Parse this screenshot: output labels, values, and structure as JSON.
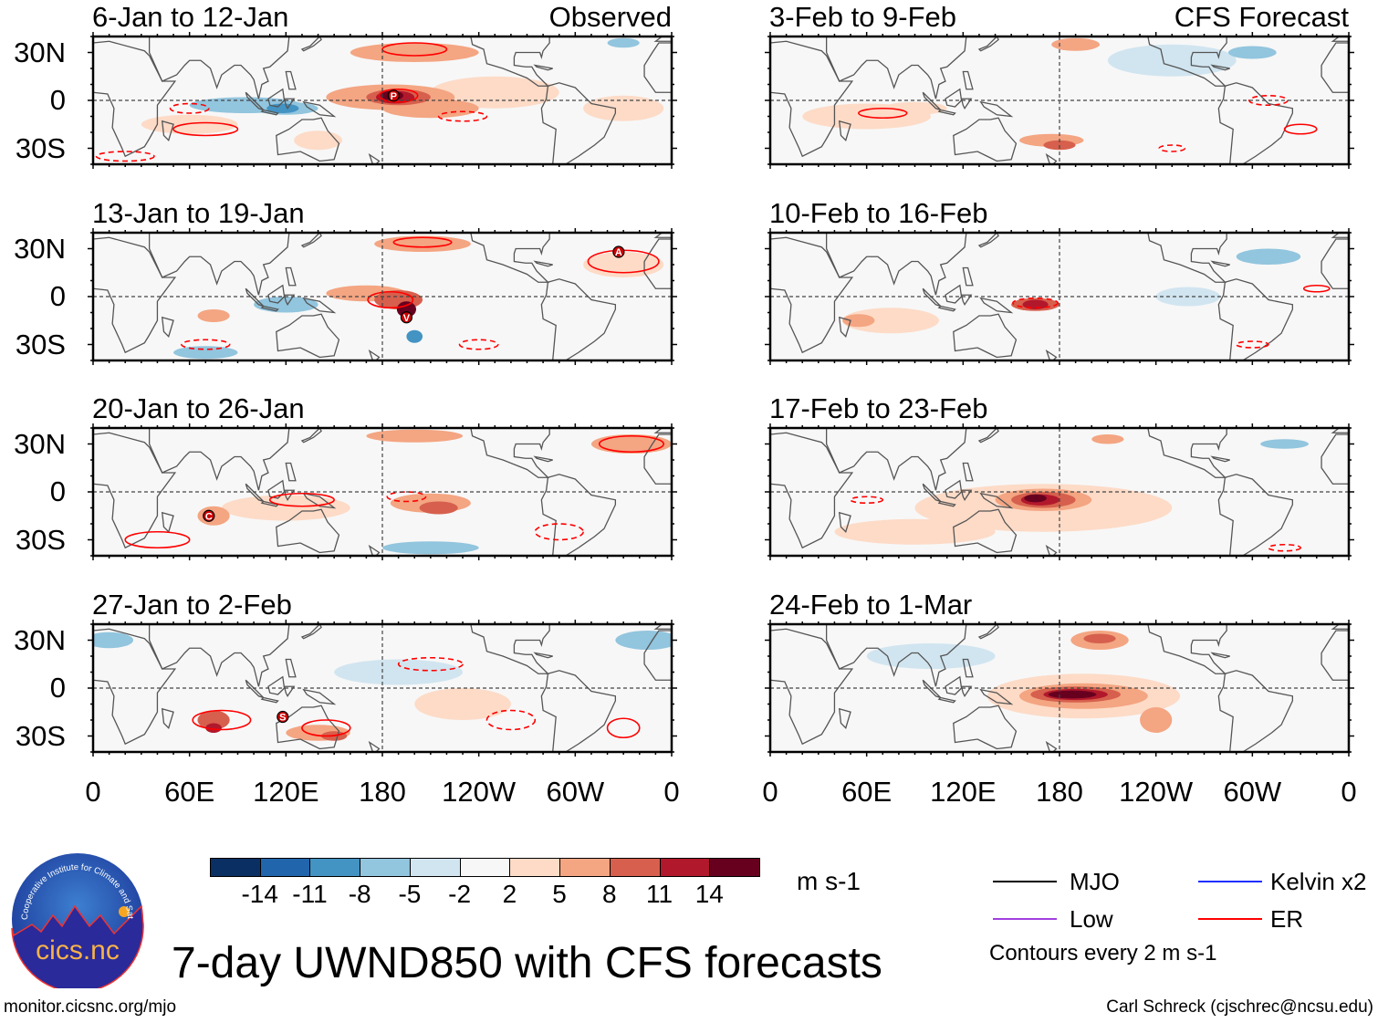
{
  "figure": {
    "title": "7-day UWND850 with CFS forecasts",
    "website": "monitor.cicsnc.org/mjo",
    "credit": "Carl Schreck (cjschrec@ncsu.edu)",
    "logo_text": "cics.nc",
    "logo_ring_text": "Cooperative Institute for Climate and Satellites"
  },
  "columns": [
    {
      "label": "Observed"
    },
    {
      "label": "CFS Forecast"
    }
  ],
  "lat_labels": [
    "30N",
    "0",
    "30S"
  ],
  "lon_labels": [
    "0",
    "60E",
    "120E",
    "180",
    "120W",
    "60W",
    "0"
  ],
  "colorbar": {
    "units": "m s-1",
    "levels": [
      "-14",
      "-11",
      "-8",
      "-5",
      "-2",
      "2",
      "5",
      "8",
      "11",
      "14"
    ],
    "colors": [
      "#0a2f62",
      "#2166ac",
      "#4393c3",
      "#92c5de",
      "#d1e5f0",
      "#f7f7f7",
      "#fddbc7",
      "#f4a582",
      "#d6604d",
      "#b2182b",
      "#67001f"
    ]
  },
  "legend": {
    "items": [
      {
        "label": "MJO",
        "color": "#000000"
      },
      {
        "label": "Kelvin x2",
        "color": "#1f2fff"
      },
      {
        "label": "Low",
        "color": "#a040e0"
      },
      {
        "label": "ER",
        "color": "#ff0000"
      }
    ],
    "note": "Contours every 2 m s-1"
  },
  "panels": [
    {
      "title": "6-Jan to 12-Jan",
      "col": 0,
      "row": 0,
      "anomalies": [
        [
          250,
          5,
          40,
          10,
          3
        ],
        [
          330,
          -5,
          25,
          8,
          3
        ],
        [
          60,
          -15,
          30,
          6,
          3
        ],
        [
          140,
          -25,
          15,
          6,
          3
        ],
        [
          185,
          2,
          40,
          8,
          6
        ],
        [
          210,
          -5,
          30,
          6,
          6
        ],
        [
          200,
          30,
          40,
          6,
          6
        ],
        [
          190,
          2,
          20,
          5,
          9
        ],
        [
          188,
          2,
          12,
          4,
          12
        ],
        [
          186,
          3,
          7,
          3,
          15
        ],
        [
          95,
          -3,
          35,
          5,
          -6
        ],
        [
          120,
          -5,
          20,
          4,
          -6
        ],
        [
          118,
          -5,
          10,
          3,
          -9
        ],
        [
          330,
          36,
          10,
          3,
          -6
        ]
      ],
      "contours": [
        [
          70,
          -18,
          20,
          4,
          1
        ],
        [
          200,
          32,
          20,
          4,
          1
        ],
        [
          190,
          3,
          12,
          4,
          1
        ],
        [
          60,
          -5,
          12,
          3,
          0
        ],
        [
          230,
          -10,
          15,
          3,
          0
        ],
        [
          20,
          -35,
          18,
          3,
          0
        ]
      ],
      "markers": [
        {
          "letter": "P",
          "lon": 187,
          "lat": 3
        }
      ]
    },
    {
      "title": "13-Jan to 19-Jan",
      "col": 0,
      "row": 1,
      "anomalies": [
        [
          330,
          20,
          25,
          8,
          3
        ],
        [
          75,
          -12,
          10,
          4,
          6
        ],
        [
          170,
          2,
          25,
          5,
          6
        ],
        [
          205,
          33,
          30,
          5,
          6
        ],
        [
          190,
          -2,
          15,
          6,
          9
        ],
        [
          195,
          -8,
          6,
          5,
          15
        ],
        [
          120,
          -5,
          20,
          5,
          -6
        ],
        [
          70,
          -35,
          20,
          4,
          -6
        ],
        [
          200,
          -25,
          5,
          4,
          -9
        ]
      ],
      "contours": [
        [
          330,
          22,
          22,
          7,
          1
        ],
        [
          185,
          -2,
          14,
          5,
          1
        ],
        [
          205,
          34,
          18,
          3,
          1
        ],
        [
          70,
          -30,
          15,
          3,
          0
        ],
        [
          240,
          -30,
          12,
          3,
          0
        ]
      ],
      "markers": [
        {
          "letter": "A",
          "lon": 327,
          "lat": 28
        },
        {
          "letter": "V",
          "lon": 195,
          "lat": -13
        }
      ]
    },
    {
      "title": "20-Jan to 26-Jan",
      "col": 0,
      "row": 2,
      "anomalies": [
        [
          120,
          -10,
          40,
          8,
          3
        ],
        [
          200,
          35,
          30,
          4,
          6
        ],
        [
          210,
          -7,
          25,
          6,
          6
        ],
        [
          215,
          -10,
          12,
          4,
          9
        ],
        [
          75,
          -15,
          10,
          6,
          6
        ],
        [
          335,
          30,
          25,
          6,
          6
        ],
        [
          210,
          -35,
          30,
          4,
          -6
        ]
      ],
      "contours": [
        [
          335,
          30,
          20,
          5,
          1
        ],
        [
          130,
          -5,
          20,
          4,
          1
        ],
        [
          40,
          -30,
          20,
          5,
          1
        ],
        [
          195,
          -3,
          12,
          3,
          0
        ],
        [
          290,
          -25,
          15,
          5,
          0
        ]
      ],
      "markers": [
        {
          "letter": "C",
          "lon": 72,
          "lat": -15
        }
      ]
    },
    {
      "title": "27-Jan to 2-Feb",
      "col": 0,
      "row": 3,
      "anomalies": [
        [
          230,
          -10,
          30,
          10,
          3
        ],
        [
          190,
          10,
          40,
          8,
          -3
        ],
        [
          10,
          30,
          15,
          5,
          -6
        ],
        [
          345,
          30,
          20,
          6,
          -6
        ],
        [
          75,
          -20,
          10,
          6,
          9
        ],
        [
          75,
          -25,
          5,
          3,
          12
        ],
        [
          140,
          -28,
          20,
          5,
          6
        ],
        [
          150,
          -30,
          8,
          3,
          9
        ]
      ],
      "contours": [
        [
          80,
          -20,
          18,
          6,
          1
        ],
        [
          145,
          -25,
          15,
          5,
          1
        ],
        [
          330,
          -25,
          10,
          6,
          1
        ],
        [
          210,
          15,
          20,
          4,
          0
        ],
        [
          260,
          -20,
          15,
          6,
          0
        ]
      ],
      "markers": [
        {
          "letter": "S",
          "lon": 118,
          "lat": -18
        }
      ]
    },
    {
      "title": "3-Feb to 9-Feb",
      "col": 1,
      "row": 0,
      "anomalies": [
        [
          60,
          -10,
          40,
          8,
          3
        ],
        [
          90,
          -5,
          20,
          4,
          3
        ],
        [
          250,
          25,
          40,
          10,
          -3
        ],
        [
          190,
          35,
          15,
          4,
          6
        ],
        [
          175,
          -25,
          20,
          4,
          6
        ],
        [
          180,
          -28,
          10,
          3,
          9
        ],
        [
          300,
          30,
          15,
          4,
          -6
        ]
      ],
      "contours": [
        [
          70,
          -8,
          15,
          3,
          1
        ],
        [
          330,
          -18,
          10,
          3,
          1
        ],
        [
          310,
          0,
          12,
          3,
          0
        ],
        [
          250,
          -30,
          8,
          2,
          0
        ]
      ],
      "markers": []
    },
    {
      "title": "10-Feb to 16-Feb",
      "col": 1,
      "row": 1,
      "anomalies": [
        [
          75,
          -15,
          30,
          8,
          3
        ],
        [
          260,
          0,
          20,
          6,
          -3
        ],
        [
          55,
          -15,
          10,
          4,
          6
        ],
        [
          310,
          25,
          20,
          5,
          -6
        ],
        [
          165,
          -5,
          15,
          4,
          9
        ],
        [
          165,
          -5,
          8,
          3,
          12
        ]
      ],
      "contours": [
        [
          165,
          -4,
          14,
          3,
          0
        ],
        [
          300,
          -30,
          10,
          2,
          0
        ],
        [
          340,
          5,
          8,
          2,
          1
        ]
      ],
      "markers": []
    },
    {
      "title": "17-Feb to 23-Feb",
      "col": 1,
      "row": 2,
      "anomalies": [
        [
          170,
          -10,
          80,
          15,
          3
        ],
        [
          90,
          -25,
          50,
          8,
          3
        ],
        [
          170,
          -5,
          30,
          7,
          6
        ],
        [
          210,
          33,
          10,
          3,
          6
        ],
        [
          320,
          30,
          15,
          3,
          -6
        ],
        [
          170,
          -5,
          20,
          5,
          9
        ],
        [
          168,
          -5,
          12,
          3.5,
          12
        ],
        [
          165,
          -4,
          7,
          2.5,
          15
        ]
      ],
      "contours": [
        [
          60,
          -5,
          10,
          2,
          0
        ],
        [
          320,
          -35,
          10,
          2,
          0
        ]
      ],
      "markers": []
    },
    {
      "title": "24-Feb to 1-Mar",
      "col": 1,
      "row": 3,
      "anomalies": [
        [
          195,
          -5,
          60,
          14,
          3
        ],
        [
          100,
          20,
          40,
          8,
          -3
        ],
        [
          195,
          -5,
          40,
          8,
          6
        ],
        [
          205,
          30,
          18,
          6,
          6
        ],
        [
          240,
          -20,
          10,
          8,
          6
        ],
        [
          205,
          31,
          10,
          3,
          9
        ],
        [
          190,
          -4,
          28,
          5,
          9
        ],
        [
          190,
          -4,
          20,
          3.5,
          12
        ],
        [
          188,
          -4,
          15,
          2.5,
          15
        ]
      ],
      "contours": [],
      "markers": []
    }
  ]
}
